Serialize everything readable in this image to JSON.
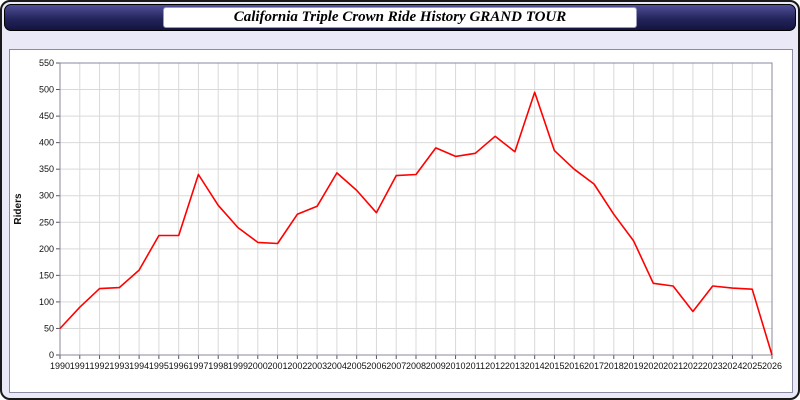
{
  "window": {
    "title": "California Triple Crown Ride History GRAND TOUR"
  },
  "colors": {
    "line": "#ff0000",
    "grid": "#d9d9d9",
    "axis": "#555566",
    "titlebar": "#24245c",
    "page_background": "#e9e9f7"
  },
  "chart_data": {
    "type": "line",
    "title": "California Triple Crown Ride History GRAND TOUR",
    "xlabel": "",
    "ylabel": "Riders",
    "ylim": [
      0,
      550
    ],
    "ytick_step": 50,
    "grid": true,
    "legend": "none",
    "categories": [
      "1990",
      "1991",
      "1992",
      "1993",
      "1994",
      "1995",
      "1996",
      "1997",
      "1998",
      "1999",
      "2000",
      "2001",
      "2002",
      "2003",
      "2004",
      "2005",
      "2006",
      "2007",
      "2008",
      "2009",
      "2010",
      "2011",
      "2012",
      "2013",
      "2014",
      "2015",
      "2016",
      "2017",
      "2018",
      "2019",
      "2020",
      "2021",
      "2022",
      "2023",
      "2024",
      "2025",
      "2026"
    ],
    "values": [
      50,
      90,
      125,
      127,
      160,
      225,
      225,
      340,
      282,
      240,
      212,
      210,
      265,
      280,
      343,
      310,
      268,
      338,
      340,
      390,
      374,
      380,
      412,
      383,
      495,
      385,
      350,
      322,
      265,
      215,
      135,
      130,
      82,
      130,
      126,
      124,
      0
    ]
  }
}
